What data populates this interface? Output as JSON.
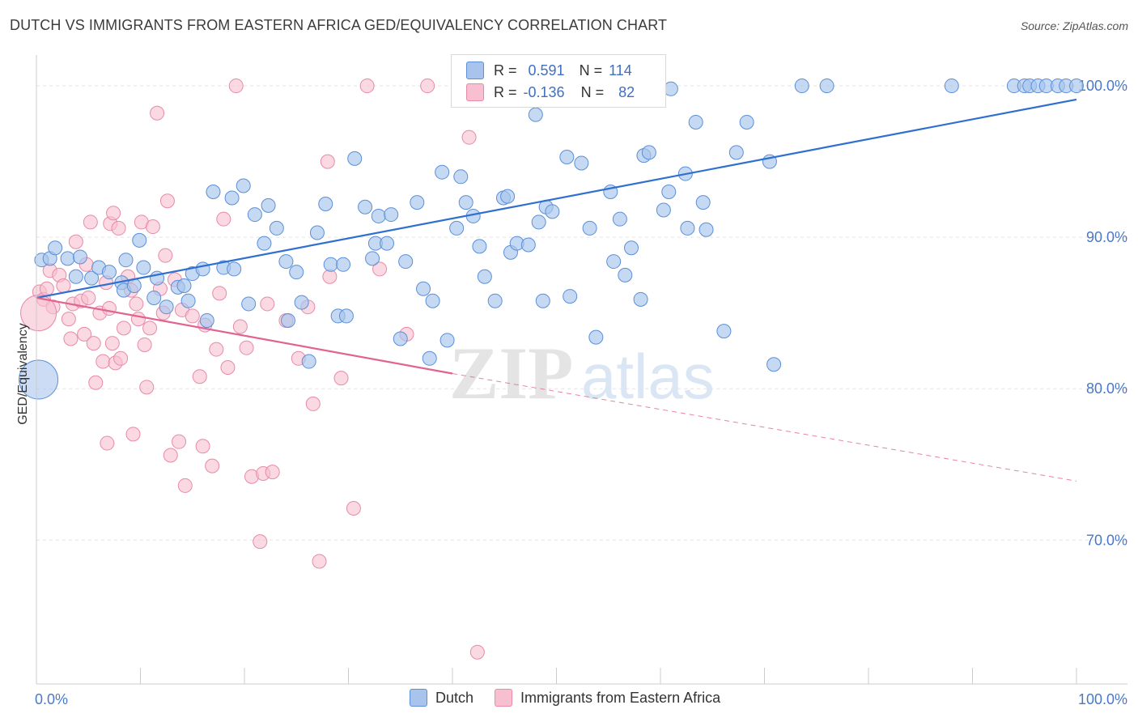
{
  "title": "DUTCH VS IMMIGRANTS FROM EASTERN AFRICA GED/EQUIVALENCY CORRELATION CHART",
  "source": "Source: ZipAtlas.com",
  "watermark": {
    "zip": "ZIP",
    "atlas": "atlas"
  },
  "legend": {
    "rows": [
      {
        "r_label": "R =",
        "r_value": "0.591",
        "n_label": "N =",
        "n_value": "114"
      },
      {
        "r_label": "R =",
        "r_value": "-0.136",
        "n_label": "N =",
        "n_value": "82"
      }
    ]
  },
  "bottom_legend": {
    "dutch": "Dutch",
    "immigrants": "Immigrants from Eastern Africa"
  },
  "colors": {
    "dutch_fill": "#a8c4ec",
    "dutch_stroke": "#5b8fd8",
    "dutch_line": "#2f6fcf",
    "imm_fill": "#f7bfd0",
    "imm_stroke": "#e88aa8",
    "imm_line": "#e0648f",
    "grid": "#e3e3e3",
    "axis_text": "#4a78c8"
  },
  "chart_data": {
    "type": "scatter",
    "title": "DUTCH VS IMMIGRANTS FROM EASTERN AFRICA GED/EQUIVALENCY CORRELATION CHART",
    "xlabel": "",
    "ylabel": "GED/Equivalency",
    "xlim": [
      0,
      100
    ],
    "ylim": [
      60.5,
      101.5
    ],
    "x_tick_labels": [
      "0.0%",
      "100.0%"
    ],
    "y_ticks": [
      70,
      80,
      90,
      100
    ],
    "y_tick_labels": [
      "70.0%",
      "80.0%",
      "90.0%",
      "100.0%"
    ],
    "grid": true,
    "legend_position": "top-center",
    "series": [
      {
        "name": "Dutch",
        "r": 0.591,
        "n": 114,
        "trend": {
          "x0": 0,
          "y0": 86.0,
          "x1": 100,
          "y1": 99.1
        },
        "points": [
          [
            0.5,
            88.5
          ],
          [
            1.3,
            88.6
          ],
          [
            1.8,
            89.3
          ],
          [
            3.0,
            88.6
          ],
          [
            3.8,
            87.4
          ],
          [
            4.2,
            88.7
          ],
          [
            5.3,
            87.3
          ],
          [
            6.0,
            88.0
          ],
          [
            7.0,
            87.7
          ],
          [
            8.2,
            87.0
          ],
          [
            8.4,
            86.5
          ],
          [
            8.6,
            88.5
          ],
          [
            9.4,
            86.8
          ],
          [
            9.9,
            89.8
          ],
          [
            10.3,
            88.0
          ],
          [
            11.3,
            86.0
          ],
          [
            11.6,
            87.3
          ],
          [
            12.5,
            85.4
          ],
          [
            13.6,
            86.7
          ],
          [
            14.2,
            86.8
          ],
          [
            14.6,
            85.8
          ],
          [
            15.0,
            87.6
          ],
          [
            16.0,
            87.9
          ],
          [
            16.4,
            84.5
          ],
          [
            17.0,
            93.0
          ],
          [
            18.0,
            88.0
          ],
          [
            18.8,
            92.6
          ],
          [
            19.0,
            87.9
          ],
          [
            19.9,
            93.4
          ],
          [
            20.4,
            85.6
          ],
          [
            21.0,
            91.5
          ],
          [
            21.9,
            89.6
          ],
          [
            22.3,
            92.1
          ],
          [
            23.1,
            90.6
          ],
          [
            24.0,
            88.4
          ],
          [
            24.2,
            84.5
          ],
          [
            25.0,
            87.7
          ],
          [
            25.5,
            85.7
          ],
          [
            26.2,
            81.8
          ],
          [
            27.0,
            90.3
          ],
          [
            27.8,
            92.2
          ],
          [
            28.3,
            88.2
          ],
          [
            29.0,
            84.8
          ],
          [
            29.5,
            88.2
          ],
          [
            29.8,
            84.8
          ],
          [
            30.6,
            95.2
          ],
          [
            31.6,
            92.0
          ],
          [
            32.3,
            88.6
          ],
          [
            32.6,
            89.6
          ],
          [
            32.9,
            91.4
          ],
          [
            33.7,
            89.6
          ],
          [
            34.1,
            91.5
          ],
          [
            35.0,
            83.3
          ],
          [
            35.5,
            88.4
          ],
          [
            36.6,
            92.3
          ],
          [
            37.2,
            86.6
          ],
          [
            37.8,
            82.0
          ],
          [
            38.1,
            85.8
          ],
          [
            39.0,
            94.3
          ],
          [
            39.5,
            83.2
          ],
          [
            40.4,
            90.6
          ],
          [
            40.8,
            94.0
          ],
          [
            41.3,
            92.3
          ],
          [
            42.0,
            91.4
          ],
          [
            42.6,
            89.4
          ],
          [
            43.1,
            87.4
          ],
          [
            44.1,
            85.8
          ],
          [
            44.9,
            92.6
          ],
          [
            45.3,
            92.7
          ],
          [
            45.6,
            89.0
          ],
          [
            46.2,
            89.6
          ],
          [
            47.3,
            89.5
          ],
          [
            48.0,
            98.1
          ],
          [
            48.3,
            91.0
          ],
          [
            48.7,
            85.8
          ],
          [
            49.0,
            92.0
          ],
          [
            49.6,
            91.7
          ],
          [
            51.0,
            95.3
          ],
          [
            51.3,
            86.1
          ],
          [
            52.4,
            94.9
          ],
          [
            53.2,
            90.6
          ],
          [
            53.8,
            83.4
          ],
          [
            55.2,
            93.0
          ],
          [
            55.5,
            88.4
          ],
          [
            56.1,
            91.2
          ],
          [
            56.6,
            87.5
          ],
          [
            57.2,
            89.3
          ],
          [
            58.1,
            85.9
          ],
          [
            58.4,
            95.4
          ],
          [
            58.9,
            95.6
          ],
          [
            60.3,
            91.8
          ],
          [
            60.8,
            93.0
          ],
          [
            61.0,
            99.8
          ],
          [
            62.4,
            94.2
          ],
          [
            62.6,
            90.6
          ],
          [
            63.4,
            97.6
          ],
          [
            64.1,
            92.3
          ],
          [
            64.4,
            90.5
          ],
          [
            66.1,
            83.8
          ],
          [
            67.3,
            95.6
          ],
          [
            68.3,
            97.6
          ],
          [
            70.5,
            95.0
          ],
          [
            70.9,
            81.6
          ],
          [
            73.6,
            100.0
          ],
          [
            76.0,
            100.0
          ],
          [
            88.0,
            100.0
          ],
          [
            94.0,
            100.0
          ],
          [
            95.0,
            100.0
          ],
          [
            95.5,
            100.0
          ],
          [
            96.3,
            100.0
          ],
          [
            97.1,
            100.0
          ],
          [
            98.2,
            100.0
          ],
          [
            99.0,
            100.0
          ],
          [
            100.0,
            100.0
          ]
        ]
      },
      {
        "name": "Immigrants from Eastern Africa",
        "r": -0.136,
        "n": 82,
        "trend_solid": {
          "x0": 0,
          "y0": 86.0,
          "x1": 40,
          "y1": 81.0
        },
        "trend_dashed": {
          "x0": 40,
          "y0": 81.0,
          "x1": 100,
          "y1": 73.9
        },
        "points": [
          [
            0.3,
            86.4
          ],
          [
            0.7,
            85.9
          ],
          [
            1.0,
            86.6
          ],
          [
            1.3,
            87.8
          ],
          [
            1.6,
            85.4
          ],
          [
            2.2,
            87.5
          ],
          [
            2.6,
            86.8
          ],
          [
            3.1,
            84.6
          ],
          [
            3.3,
            83.3
          ],
          [
            3.5,
            85.6
          ],
          [
            3.8,
            89.7
          ],
          [
            4.3,
            85.8
          ],
          [
            4.6,
            83.6
          ],
          [
            4.8,
            88.2
          ],
          [
            5.0,
            86.0
          ],
          [
            5.2,
            91.0
          ],
          [
            5.5,
            83.0
          ],
          [
            5.7,
            80.4
          ],
          [
            6.1,
            85.0
          ],
          [
            6.4,
            81.8
          ],
          [
            6.7,
            87.0
          ],
          [
            6.8,
            76.4
          ],
          [
            7.0,
            85.3
          ],
          [
            7.1,
            90.9
          ],
          [
            7.3,
            83.0
          ],
          [
            7.4,
            91.6
          ],
          [
            7.6,
            81.7
          ],
          [
            7.9,
            90.6
          ],
          [
            8.1,
            82.0
          ],
          [
            8.4,
            84.0
          ],
          [
            8.8,
            87.4
          ],
          [
            9.1,
            86.5
          ],
          [
            9.3,
            77.0
          ],
          [
            9.6,
            85.6
          ],
          [
            9.8,
            84.6
          ],
          [
            10.1,
            91.0
          ],
          [
            10.4,
            82.9
          ],
          [
            10.6,
            80.1
          ],
          [
            10.9,
            84.0
          ],
          [
            11.2,
            90.7
          ],
          [
            11.6,
            98.2
          ],
          [
            11.9,
            86.6
          ],
          [
            12.2,
            85.0
          ],
          [
            12.4,
            88.8
          ],
          [
            12.6,
            92.4
          ],
          [
            12.9,
            75.6
          ],
          [
            13.3,
            87.2
          ],
          [
            13.7,
            76.5
          ],
          [
            14.0,
            85.2
          ],
          [
            14.3,
            73.6
          ],
          [
            15.0,
            84.8
          ],
          [
            15.7,
            80.8
          ],
          [
            16.0,
            76.2
          ],
          [
            16.2,
            84.2
          ],
          [
            16.9,
            74.9
          ],
          [
            17.3,
            82.6
          ],
          [
            17.6,
            86.3
          ],
          [
            18.0,
            91.2
          ],
          [
            18.4,
            81.4
          ],
          [
            19.2,
            100.0
          ],
          [
            19.6,
            84.1
          ],
          [
            20.2,
            82.7
          ],
          [
            20.7,
            74.2
          ],
          [
            21.5,
            69.9
          ],
          [
            21.8,
            74.4
          ],
          [
            22.2,
            85.6
          ],
          [
            22.7,
            74.5
          ],
          [
            24.0,
            84.5
          ],
          [
            25.2,
            82.0
          ],
          [
            26.1,
            85.4
          ],
          [
            27.2,
            68.6
          ],
          [
            28.2,
            87.4
          ],
          [
            28.0,
            95.0
          ],
          [
            29.3,
            80.7
          ],
          [
            30.5,
            72.1
          ],
          [
            31.8,
            100.0
          ],
          [
            33.0,
            87.9
          ],
          [
            35.6,
            83.6
          ],
          [
            37.6,
            100.0
          ],
          [
            41.6,
            96.6
          ],
          [
            42.4,
            62.6
          ],
          [
            26.6,
            79.0
          ]
        ]
      }
    ],
    "big_points": [
      {
        "series": "Dutch",
        "x": 0.2,
        "y": 80.6
      },
      {
        "series": "Immigrants from Eastern Africa",
        "x": 0.2,
        "y": 85.0
      }
    ]
  }
}
